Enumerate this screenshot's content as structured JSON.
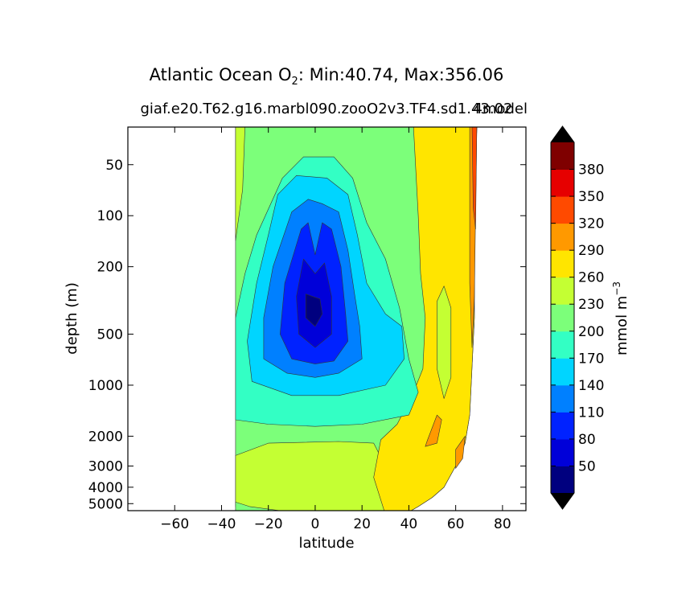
{
  "chart_data": {
    "type": "heatmap",
    "title": {
      "prefix": "Atlantic Ocean O",
      "subscript": "2",
      "suffix": ": Min:40.74, Max:356.06"
    },
    "subtitle": "giaf.e20.T62.g16.marbl090.zooO2v3.TF4.sd1.43.02",
    "subtitle_right": "4model",
    "xlabel": "latitude",
    "ylabel": "depth (m)",
    "xlim": [
      -80,
      90
    ],
    "x_ticks": [
      -60,
      -40,
      -20,
      0,
      20,
      40,
      60,
      80
    ],
    "x_tick_labels": [
      "−60",
      "−40",
      "−20",
      "0",
      "20",
      "40",
      "60",
      "80"
    ],
    "y_scale": "log",
    "ylim": [
      5500,
      30
    ],
    "y_ticks": [
      50,
      100,
      200,
      500,
      1000,
      2000,
      3000,
      4000,
      5000
    ],
    "y_tick_labels": [
      "50",
      "100",
      "200",
      "500",
      "1000",
      "2000",
      "3000",
      "4000",
      "5000"
    ],
    "colorbar": {
      "label": "mmol m",
      "label_sup": "−3",
      "levels": [
        20,
        50,
        80,
        110,
        140,
        170,
        200,
        230,
        260,
        290,
        320,
        350,
        380,
        410
      ],
      "tick_labels": [
        "50",
        "80",
        "110",
        "140",
        "170",
        "200",
        "230",
        "260",
        "290",
        "320",
        "350",
        "380"
      ],
      "colors": [
        "#00007f",
        "#0000d9",
        "#0022ff",
        "#0080ff",
        "#00d5ff",
        "#33ffc4",
        "#7cff7a",
        "#c4ff33",
        "#ffe500",
        "#ff9900",
        "#ff4a00",
        "#e60000",
        "#7f0000"
      ],
      "extend": "both"
    },
    "fields": {
      "ocean_mask": [
        {
          "lat": -34,
          "depth": 30
        },
        {
          "lat": 69,
          "depth": 30
        },
        {
          "lat": 68,
          "depth": 120
        },
        {
          "lat": 68,
          "depth": 400
        },
        {
          "lat": 66,
          "depth": 1500
        },
        {
          "lat": 64,
          "depth": 2200
        },
        {
          "lat": 60,
          "depth": 3000
        },
        {
          "lat": 55,
          "depth": 4000
        },
        {
          "lat": 50,
          "depth": 4600
        },
        {
          "lat": 44,
          "depth": 5200
        },
        {
          "lat": 38,
          "depth": 5800
        },
        {
          "lat": -30,
          "depth": 5800
        },
        {
          "lat": -34,
          "depth": 5200
        }
      ],
      "bands": [
        {
          "value": 245,
          "points": [
            {
              "lat": -34,
              "depth": 30
            },
            {
              "lat": -30,
              "depth": 30
            },
            {
              "lat": -31,
              "depth": 70
            },
            {
              "lat": -34,
              "depth": 140
            }
          ]
        },
        {
          "value": 245,
          "points": [
            {
              "lat": -34,
              "depth": 2600
            },
            {
              "lat": -20,
              "depth": 2200
            },
            {
              "lat": 10,
              "depth": 2150
            },
            {
              "lat": 25,
              "depth": 2200
            },
            {
              "lat": 30,
              "depth": 3000
            },
            {
              "lat": 32,
              "depth": 5800
            },
            {
              "lat": -30,
              "depth": 5800
            },
            {
              "lat": -34,
              "depth": 5000
            }
          ]
        },
        {
          "value": 215,
          "points": [
            {
              "lat": -34,
              "depth": 4900
            },
            {
              "lat": -28,
              "depth": 5200
            },
            {
              "lat": -15,
              "depth": 5500
            },
            {
              "lat": -20,
              "depth": 5800
            },
            {
              "lat": -34,
              "depth": 5800
            }
          ]
        },
        {
          "value": 275,
          "points": [
            {
              "lat": 42,
              "depth": 30
            },
            {
              "lat": 69,
              "depth": 30
            },
            {
              "lat": 68,
              "depth": 120
            },
            {
              "lat": 68,
              "depth": 400
            },
            {
              "lat": 66,
              "depth": 1500
            },
            {
              "lat": 64,
              "depth": 2200
            },
            {
              "lat": 60,
              "depth": 3000
            },
            {
              "lat": 55,
              "depth": 4000
            },
            {
              "lat": 50,
              "depth": 4600
            },
            {
              "lat": 44,
              "depth": 5200
            },
            {
              "lat": 38,
              "depth": 5800
            },
            {
              "lat": 30,
              "depth": 5800
            },
            {
              "lat": 25,
              "depth": 3500
            },
            {
              "lat": 28,
              "depth": 2100
            },
            {
              "lat": 35,
              "depth": 1700
            },
            {
              "lat": 42,
              "depth": 1100
            },
            {
              "lat": 46,
              "depth": 800
            },
            {
              "lat": 47,
              "depth": 400
            },
            {
              "lat": 45,
              "depth": 220
            },
            {
              "lat": 44,
              "depth": 100
            }
          ]
        },
        {
          "value": 245,
          "points": [
            {
              "lat": 52,
              "depth": 320
            },
            {
              "lat": 55,
              "depth": 260
            },
            {
              "lat": 58,
              "depth": 350
            },
            {
              "lat": 58,
              "depth": 900
            },
            {
              "lat": 55,
              "depth": 1200
            },
            {
              "lat": 52,
              "depth": 800
            }
          ]
        },
        {
          "value": 305,
          "points": [
            {
              "lat": 48,
              "depth": 2100
            },
            {
              "lat": 52,
              "depth": 1500
            },
            {
              "lat": 54,
              "depth": 1600
            },
            {
              "lat": 52,
              "depth": 2200
            },
            {
              "lat": 47,
              "depth": 2300
            }
          ]
        },
        {
          "value": 305,
          "points": [
            {
              "lat": 66,
              "depth": 30
            },
            {
              "lat": 69,
              "depth": 30
            },
            {
              "lat": 68,
              "depth": 300
            },
            {
              "lat": 67,
              "depth": 600
            },
            {
              "lat": 66,
              "depth": 250
            }
          ]
        },
        {
          "value": 335,
          "points": [
            {
              "lat": 67,
              "depth": 30
            },
            {
              "lat": 69,
              "depth": 30
            },
            {
              "lat": 68.5,
              "depth": 120
            },
            {
              "lat": 67.5,
              "depth": 90
            }
          ]
        },
        {
          "value": 305,
          "points": [
            {
              "lat": 60,
              "depth": 2400
            },
            {
              "lat": 64,
              "depth": 2000
            },
            {
              "lat": 63,
              "depth": 2700
            },
            {
              "lat": 60,
              "depth": 3100
            }
          ]
        },
        {
          "value": 185,
          "points": [
            {
              "lat": -14,
              "depth": 60
            },
            {
              "lat": -5,
              "depth": 45
            },
            {
              "lat": 8,
              "depth": 45
            },
            {
              "lat": 16,
              "depth": 60
            },
            {
              "lat": 22,
              "depth": 110
            },
            {
              "lat": 30,
              "depth": 180
            },
            {
              "lat": 36,
              "depth": 350
            },
            {
              "lat": 40,
              "depth": 700
            },
            {
              "lat": 44,
              "depth": 1100
            },
            {
              "lat": 40,
              "depth": 1500
            },
            {
              "lat": 20,
              "depth": 1700
            },
            {
              "lat": 0,
              "depth": 1750
            },
            {
              "lat": -20,
              "depth": 1700
            },
            {
              "lat": -34,
              "depth": 1600
            },
            {
              "lat": -34,
              "depth": 400
            },
            {
              "lat": -30,
              "depth": 220
            },
            {
              "lat": -25,
              "depth": 130
            }
          ]
        },
        {
          "value": 155,
          "points": [
            {
              "lat": -16,
              "depth": 75
            },
            {
              "lat": -8,
              "depth": 58
            },
            {
              "lat": 5,
              "depth": 60
            },
            {
              "lat": 14,
              "depth": 75
            },
            {
              "lat": 18,
              "depth": 130
            },
            {
              "lat": 22,
              "depth": 250
            },
            {
              "lat": 30,
              "depth": 380
            },
            {
              "lat": 37,
              "depth": 450
            },
            {
              "lat": 38,
              "depth": 700
            },
            {
              "lat": 30,
              "depth": 1000
            },
            {
              "lat": 10,
              "depth": 1150
            },
            {
              "lat": -10,
              "depth": 1150
            },
            {
              "lat": -27,
              "depth": 950
            },
            {
              "lat": -29,
              "depth": 550
            },
            {
              "lat": -25,
              "depth": 250
            },
            {
              "lat": -20,
              "depth": 130
            }
          ]
        },
        {
          "value": 125,
          "points": [
            {
              "lat": -10,
              "depth": 95
            },
            {
              "lat": -3,
              "depth": 80
            },
            {
              "lat": 3,
              "depth": 85
            },
            {
              "lat": 10,
              "depth": 95
            },
            {
              "lat": 14,
              "depth": 160
            },
            {
              "lat": 17,
              "depth": 300
            },
            {
              "lat": 19,
              "depth": 450
            },
            {
              "lat": 20,
              "depth": 700
            },
            {
              "lat": 10,
              "depth": 850
            },
            {
              "lat": 0,
              "depth": 900
            },
            {
              "lat": -12,
              "depth": 850
            },
            {
              "lat": -22,
              "depth": 700
            },
            {
              "lat": -22,
              "depth": 400
            },
            {
              "lat": -18,
              "depth": 200
            }
          ]
        },
        {
          "value": 95,
          "points": [
            {
              "lat": -6,
              "depth": 120
            },
            {
              "lat": -3,
              "depth": 110
            },
            {
              "lat": 0,
              "depth": 170
            },
            {
              "lat": 3,
              "depth": 110
            },
            {
              "lat": 7,
              "depth": 120
            },
            {
              "lat": 11,
              "depth": 200
            },
            {
              "lat": 13,
              "depth": 380
            },
            {
              "lat": 14,
              "depth": 550
            },
            {
              "lat": 8,
              "depth": 720
            },
            {
              "lat": 0,
              "depth": 750
            },
            {
              "lat": -10,
              "depth": 700
            },
            {
              "lat": -15,
              "depth": 500
            },
            {
              "lat": -13,
              "depth": 250
            }
          ]
        },
        {
          "value": 65,
          "points": [
            {
              "lat": -5,
              "depth": 180
            },
            {
              "lat": 0,
              "depth": 220
            },
            {
              "lat": 4,
              "depth": 190
            },
            {
              "lat": 7,
              "depth": 300
            },
            {
              "lat": 7,
              "depth": 500
            },
            {
              "lat": 0,
              "depth": 600
            },
            {
              "lat": -7,
              "depth": 500
            },
            {
              "lat": -8,
              "depth": 300
            }
          ]
        },
        {
          "value": 35,
          "points": [
            {
              "lat": -4,
              "depth": 290
            },
            {
              "lat": -1,
              "depth": 300
            },
            {
              "lat": 2,
              "depth": 310
            },
            {
              "lat": 3,
              "depth": 380
            },
            {
              "lat": 0,
              "depth": 450
            },
            {
              "lat": -4,
              "depth": 400
            }
          ]
        }
      ]
    }
  }
}
